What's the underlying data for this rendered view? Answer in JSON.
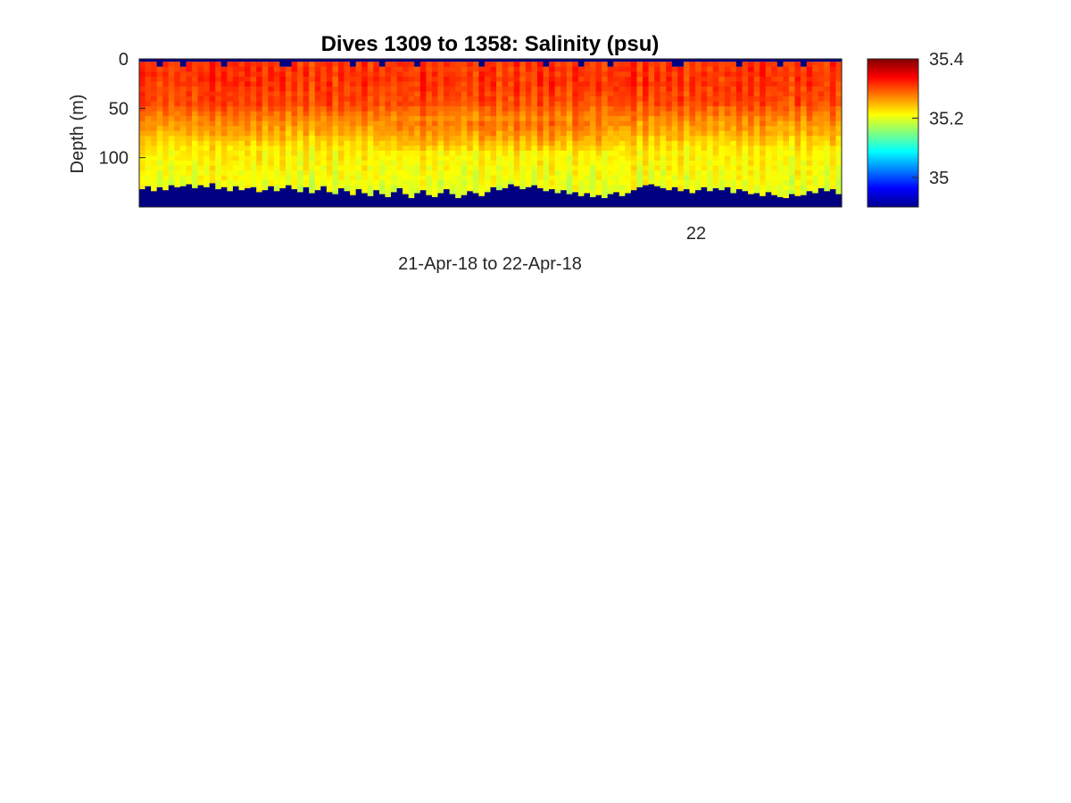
{
  "chart_data": {
    "type": "heatmap",
    "title": "Dives 1309 to 1358: Salinity (psu)",
    "xlabel": "21-Apr-18 to 22-Apr-18",
    "ylabel": "Depth (m)",
    "x_tick_labels": [
      "22"
    ],
    "y_ticks": [
      0,
      50,
      100
    ],
    "ylim": [
      0,
      150
    ],
    "dives": [
      1309,
      1358
    ],
    "colorbar": {
      "colormap": "jet",
      "clim": [
        34.9,
        35.4
      ],
      "ticks": [
        35,
        35.2,
        35.4
      ],
      "tick_labels": [
        "35",
        "35.2",
        "35.4"
      ]
    },
    "profile_bottom_depths_m": [
      132,
      129,
      134,
      130,
      133,
      128,
      130,
      129,
      127,
      131,
      128,
      130,
      126,
      132,
      130,
      134,
      129,
      133,
      131,
      130,
      135,
      133,
      129,
      134,
      131,
      128,
      132,
      135,
      130,
      136,
      133,
      129,
      135,
      137,
      131,
      134,
      138,
      132,
      136,
      139,
      133,
      137,
      140,
      135,
      131,
      137,
      141,
      136,
      133,
      138,
      140,
      136,
      132,
      137,
      141,
      138,
      134,
      136,
      139,
      135,
      130,
      133,
      131,
      127,
      129,
      132,
      130,
      128,
      131,
      134,
      132,
      136,
      133,
      137,
      135,
      139,
      136,
      140,
      138,
      141,
      137,
      135,
      139,
      136,
      133,
      130,
      128,
      127,
      129,
      131,
      133,
      130,
      134,
      132,
      136,
      133,
      130,
      134,
      131,
      133,
      130,
      136,
      132,
      134,
      137,
      136,
      139,
      135,
      138,
      140,
      141,
      137,
      139,
      138,
      134,
      136,
      131,
      134,
      132,
      137
    ],
    "salinity_profile": {
      "depths_m": [
        0,
        10,
        25,
        45,
        60,
        75,
        90,
        110,
        130,
        150
      ],
      "salinity_psu": [
        35.31,
        35.31,
        35.31,
        35.3,
        35.27,
        35.25,
        35.22,
        35.21,
        35.2,
        35.2
      ]
    }
  }
}
